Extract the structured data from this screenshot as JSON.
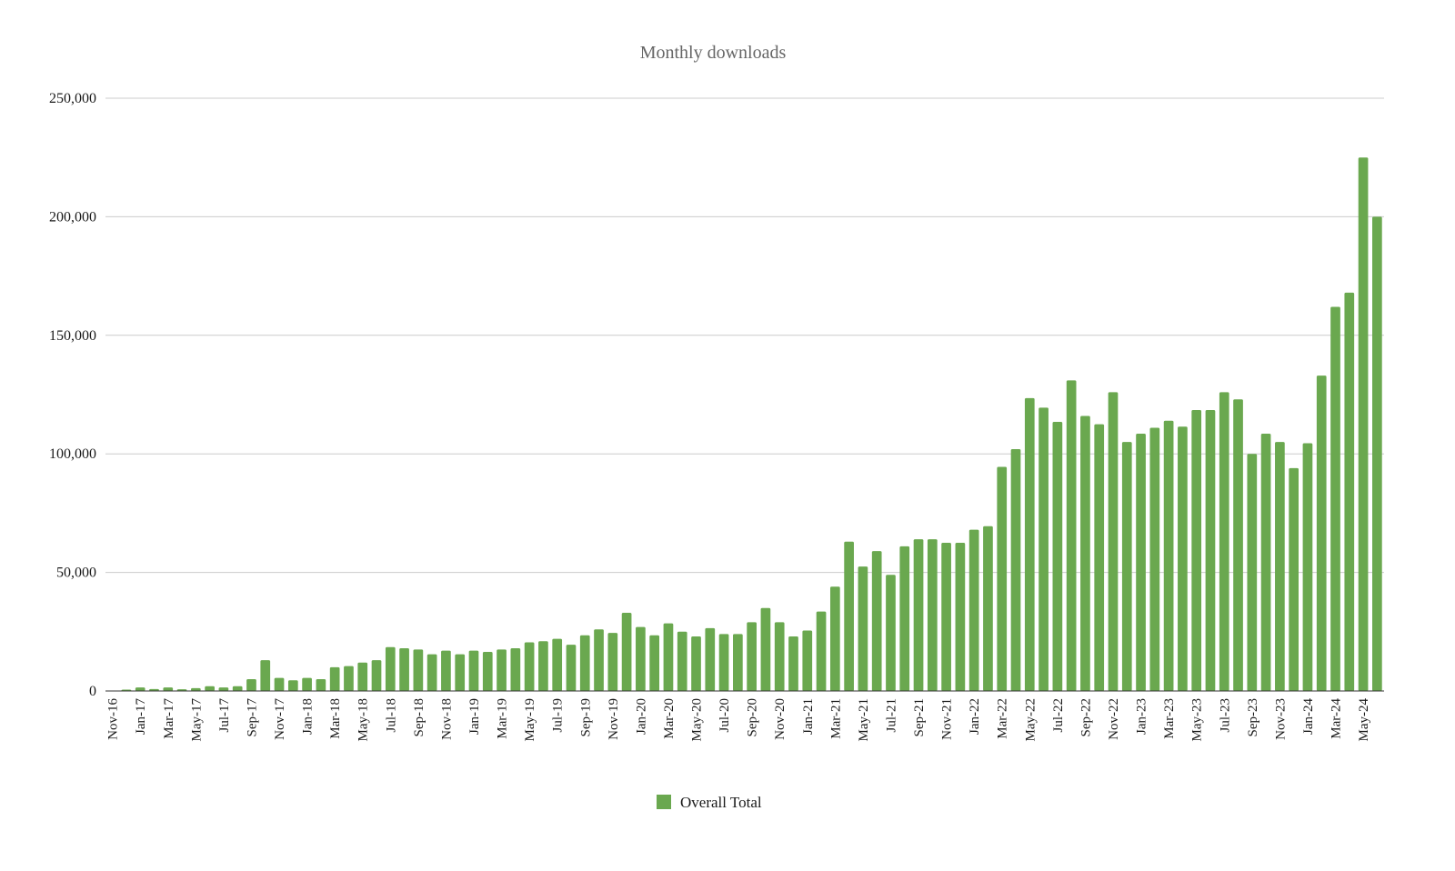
{
  "chart_data": {
    "type": "bar",
    "title": "Monthly downloads",
    "xlabel": "",
    "ylabel": "",
    "ylim": [
      0,
      250000
    ],
    "y_ticks": [
      0,
      50000,
      100000,
      150000,
      200000,
      250000
    ],
    "y_tick_labels": [
      "0",
      "50,000",
      "100,000",
      "150,000",
      "200,000",
      "250,000"
    ],
    "grid": true,
    "legend_position": "bottom",
    "bar_color": "#6aa84f",
    "categories": [
      "Nov-16",
      "Dec-16",
      "Jan-17",
      "Feb-17",
      "Mar-17",
      "Apr-17",
      "May-17",
      "Jun-17",
      "Jul-17",
      "Aug-17",
      "Sep-17",
      "Oct-17",
      "Nov-17",
      "Dec-17",
      "Jan-18",
      "Feb-18",
      "Mar-18",
      "Apr-18",
      "May-18",
      "Jun-18",
      "Jul-18",
      "Aug-18",
      "Sep-18",
      "Oct-18",
      "Nov-18",
      "Dec-18",
      "Jan-19",
      "Feb-19",
      "Mar-19",
      "Apr-19",
      "May-19",
      "Jun-19",
      "Jul-19",
      "Aug-19",
      "Sep-19",
      "Oct-19",
      "Nov-19",
      "Dec-19",
      "Jan-20",
      "Feb-20",
      "Mar-20",
      "Apr-20",
      "May-20",
      "Jun-20",
      "Jul-20",
      "Aug-20",
      "Sep-20",
      "Oct-20",
      "Nov-20",
      "Dec-20",
      "Jan-21",
      "Feb-21",
      "Mar-21",
      "Apr-21",
      "May-21",
      "Jun-21",
      "Jul-21",
      "Aug-21",
      "Sep-21",
      "Oct-21",
      "Nov-21",
      "Dec-21",
      "Jan-22",
      "Feb-22",
      "Mar-22",
      "Apr-22",
      "May-22",
      "Jun-22",
      "Jul-22",
      "Aug-22",
      "Sep-22",
      "Oct-22",
      "Nov-22",
      "Dec-22",
      "Jan-23",
      "Feb-23",
      "Mar-23",
      "Apr-23",
      "May-23",
      "Jun-23",
      "Jul-23",
      "Aug-23",
      "Sep-23",
      "Oct-23",
      "Nov-23",
      "Dec-23",
      "Jan-24",
      "Feb-24",
      "Mar-24",
      "Apr-24",
      "May-24",
      "Jun-24"
    ],
    "shown_x_labels": [
      "Nov-16",
      "Jan-17",
      "Mar-17",
      "May-17",
      "Jul-17",
      "Sep-17",
      "Nov-17",
      "Jan-18",
      "Mar-18",
      "May-18",
      "Jul-18",
      "Sep-18",
      "Nov-18",
      "Jan-19",
      "Mar-19",
      "May-19",
      "Jul-19",
      "Sep-19",
      "Nov-19",
      "Jan-20",
      "Mar-20",
      "May-20",
      "Jul-20",
      "Sep-20",
      "Nov-20",
      "Jan-21",
      "Mar-21",
      "May-21",
      "Jul-21",
      "Sep-21",
      "Nov-21",
      "Jan-22",
      "Mar-22",
      "May-22",
      "Jul-22",
      "Sep-22",
      "Nov-22",
      "Jan-23",
      "Mar-23",
      "May-23",
      "Jul-23",
      "Sep-23",
      "Nov-23",
      "Jan-24",
      "Mar-24",
      "May-24"
    ],
    "series": [
      {
        "name": "Overall Total",
        "values": [
          200,
          600,
          1500,
          800,
          1500,
          700,
          1200,
          2000,
          1500,
          2000,
          5000,
          13000,
          5500,
          4500,
          5500,
          5000,
          10000,
          10500,
          12000,
          13000,
          18500,
          18000,
          17500,
          15500,
          17000,
          15500,
          17000,
          16500,
          17500,
          18000,
          20500,
          21000,
          22000,
          19500,
          23500,
          26000,
          24500,
          33000,
          27000,
          23500,
          28500,
          25000,
          23000,
          26500,
          24000,
          24000,
          29000,
          35000,
          29000,
          23000,
          25500,
          33500,
          44000,
          63000,
          52500,
          59000,
          49000,
          61000,
          64000,
          64000,
          62500,
          62500,
          68000,
          69500,
          94500,
          102000,
          123500,
          119500,
          113500,
          131000,
          116000,
          112500,
          126000,
          105000,
          108500,
          111000,
          114000,
          111500,
          118500,
          118500,
          126000,
          123000,
          100000,
          108500,
          105000,
          94000,
          104500,
          133000,
          162000,
          168000,
          225000,
          200000
        ]
      }
    ]
  }
}
